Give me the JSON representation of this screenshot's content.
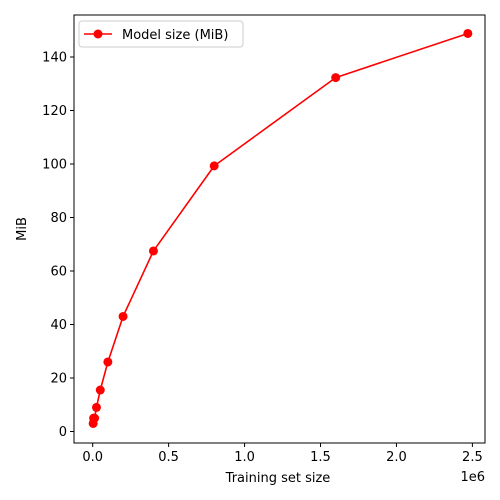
{
  "chart_data": {
    "type": "line",
    "title": "",
    "xlabel": "Training set size",
    "ylabel": "MiB",
    "x_offset_label": "1e6",
    "x_scale": 1000000,
    "xlim": [
      -0.123,
      2.583
    ],
    "ylim": [
      -4.3,
      155.7
    ],
    "x_ticks": [
      0.0,
      0.5,
      1.0,
      1.5,
      2.0,
      2.5
    ],
    "x_tick_labels": [
      "0.0",
      "0.5",
      "1.0",
      "1.5",
      "2.0",
      "2.5"
    ],
    "y_ticks": [
      0,
      20,
      40,
      60,
      80,
      100,
      120,
      140
    ],
    "y_tick_labels": [
      "0",
      "20",
      "40",
      "60",
      "80",
      "100",
      "120",
      "140"
    ],
    "legend": {
      "position": "top-left",
      "entries": [
        "Model size (MiB)"
      ]
    },
    "series": [
      {
        "name": "Model size (MiB)",
        "color": "#ff0000",
        "marker": "circle",
        "x": [
          3125,
          6250,
          12500,
          25000,
          50000,
          100000,
          200000,
          400000,
          800000,
          1600000,
          2470000
        ],
        "values": [
          3.0,
          5.0,
          5.0,
          9.0,
          15.5,
          26.0,
          43.0,
          67.5,
          99.3,
          132.3,
          148.8
        ]
      }
    ]
  }
}
